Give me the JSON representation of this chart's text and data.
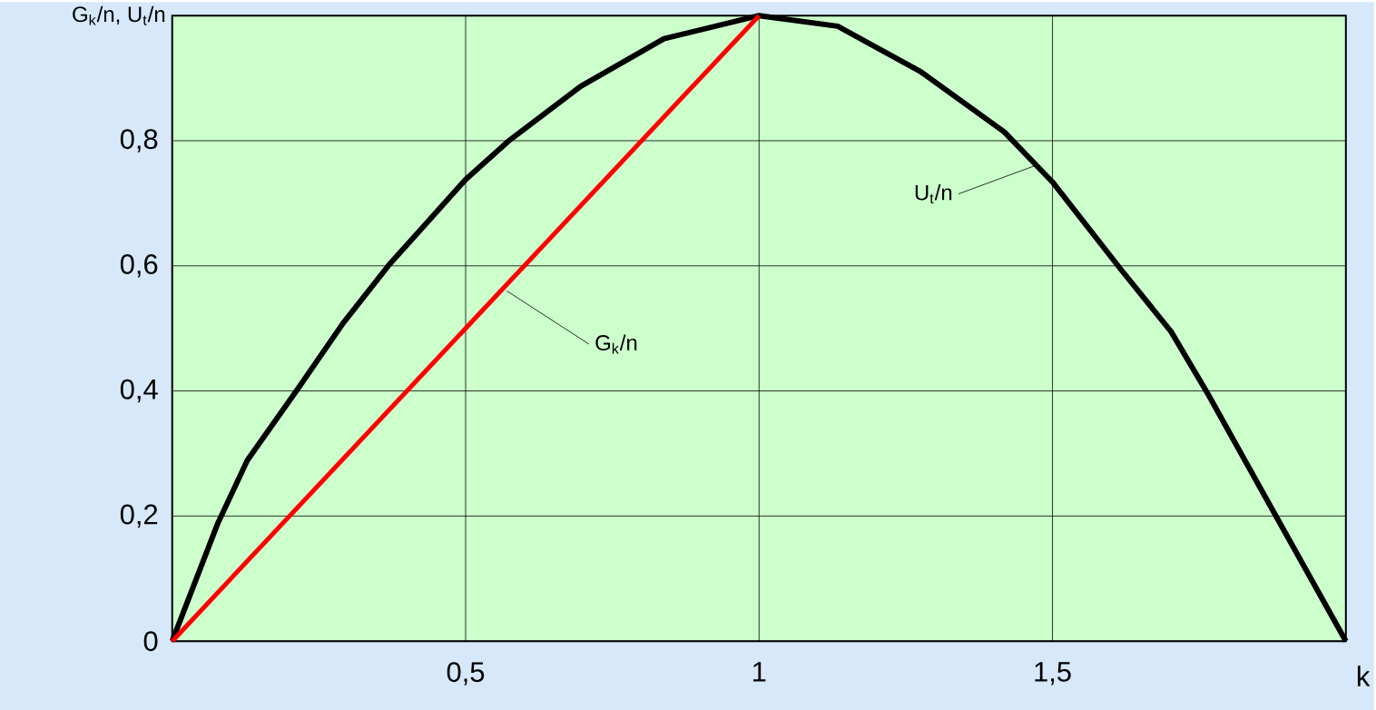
{
  "chart_data": {
    "type": "line",
    "xlabel": "k",
    "ylabel": "G$_{k}$/n, U$_{t}$/n",
    "xlim": [
      0,
      2
    ],
    "ylim": [
      0,
      1
    ],
    "xticks": [
      {
        "value": 0.5,
        "label": "0,5"
      },
      {
        "value": 1,
        "label": "1"
      },
      {
        "value": 1.5,
        "label": "1,5"
      }
    ],
    "yticks": [
      0,
      {
        "value": 0.2,
        "label": "0,2"
      },
      {
        "value": 0.4,
        "label": "0,4"
      },
      {
        "value": 0.6,
        "label": "0,6"
      },
      {
        "value": 0.8,
        "label": "0,8"
      }
    ],
    "grid": true,
    "series": [
      {
        "color": "#000000",
        "x": [
          0,
          0.078,
          0.128,
          0.213,
          0.291,
          0.369,
          0.5,
          0.575,
          0.696,
          0.838,
          1.0,
          1.134,
          1.276,
          1.418,
          1.5,
          1.616,
          1.702,
          1.765,
          1.879,
          2.0
        ],
        "values": [
          0,
          0.189,
          0.289,
          0.402,
          0.508,
          0.601,
          0.738,
          0.801,
          0.887,
          0.963,
          1.0,
          0.983,
          0.91,
          0.814,
          0.734,
          0.595,
          0.495,
          0.395,
          0.203,
          0
        ]
      },
      {
        "color": "#ff0000",
        "x": [
          0,
          1
        ],
        "values": [
          0,
          1
        ]
      }
    ],
    "annotations": [
      {
        "text": "G$_{k}$/n",
        "x": 0.57,
        "y": 0.56
      },
      {
        "text": "U$_{t}$/n",
        "x": 1.47,
        "y": 0.76
      }
    ]
  }
}
